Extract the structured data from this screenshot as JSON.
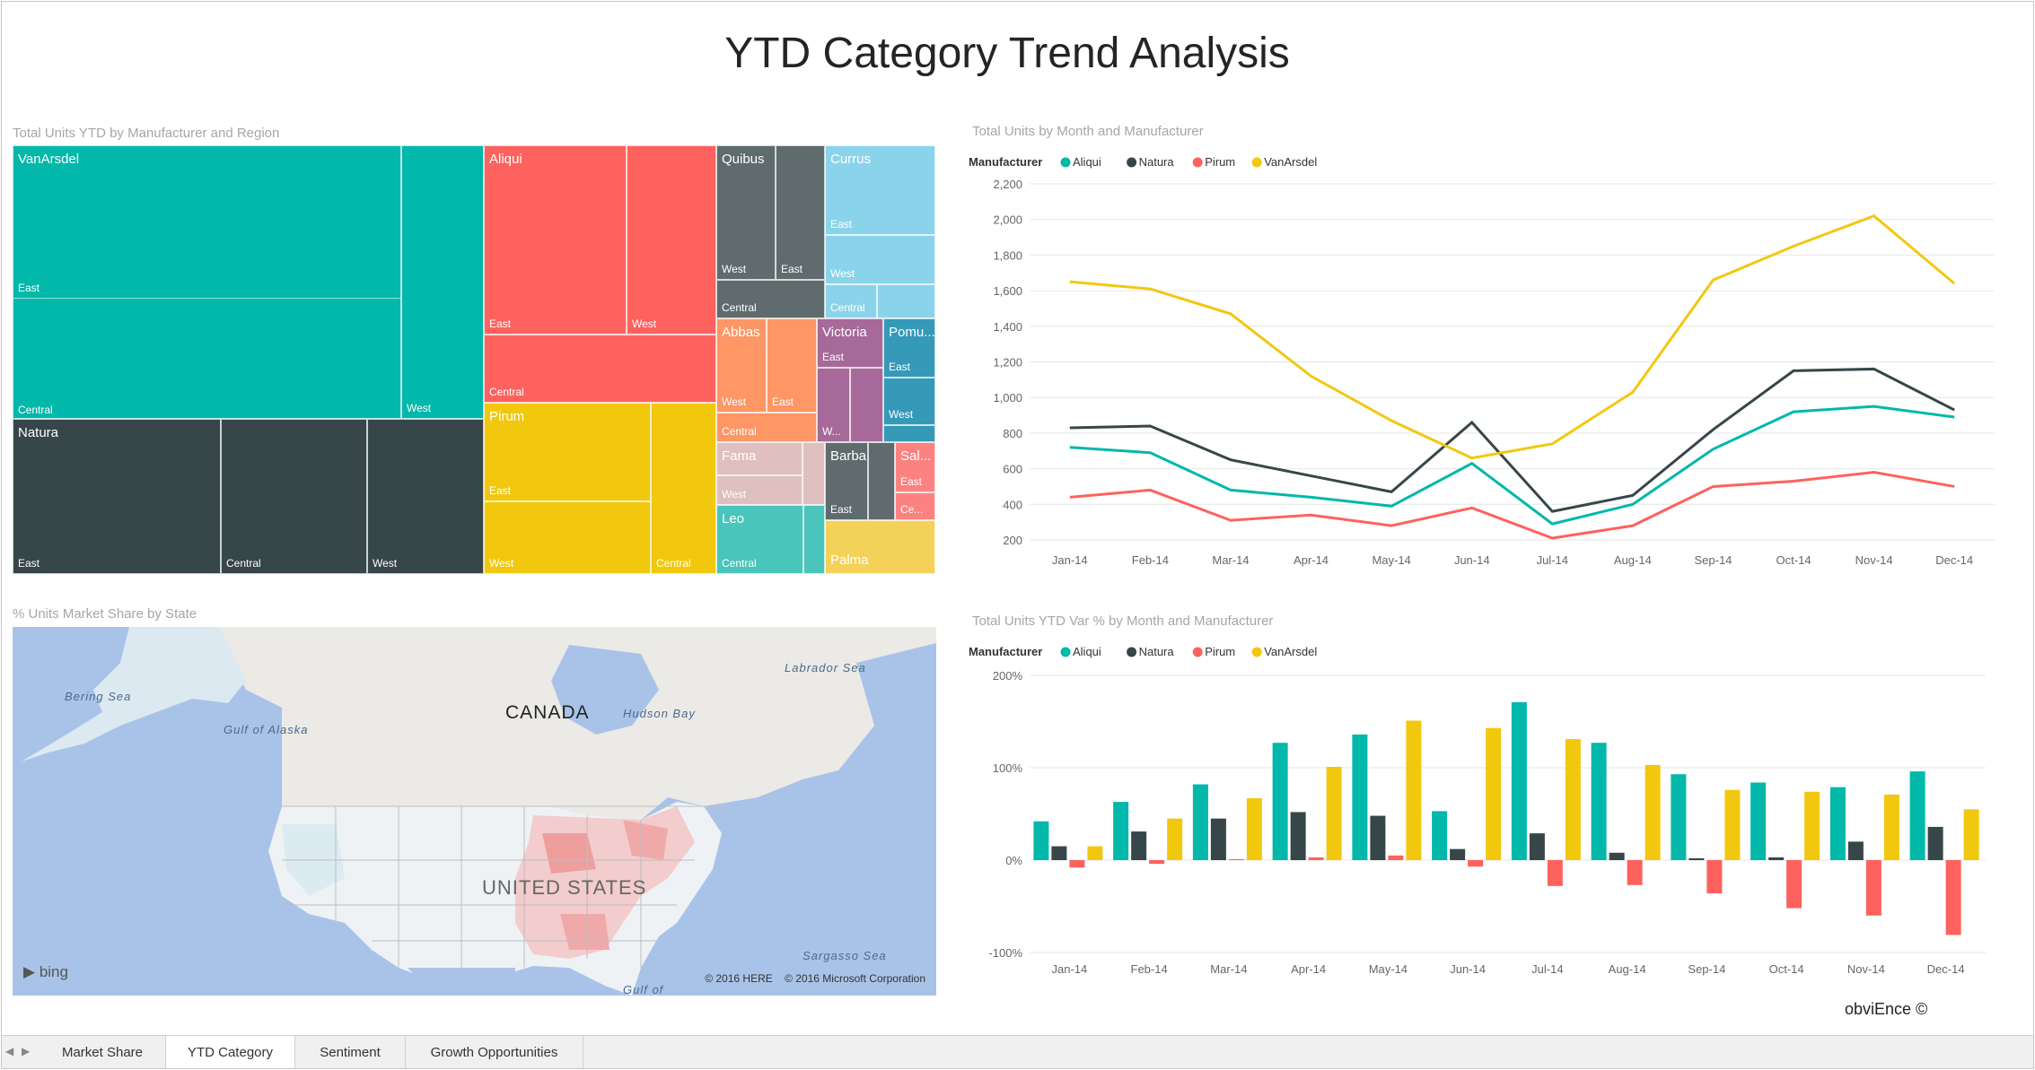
{
  "page": {
    "title": "YTD Category Trend Analysis",
    "watermark": "obviEnce ©"
  },
  "treemap": {
    "title": "Total Units YTD by Manufacturer and Region",
    "tiles": [
      {
        "name": "VanArsdel",
        "color": "#01B8AA",
        "regions": [
          "East",
          "Central",
          "West"
        ]
      },
      {
        "name": "Natura",
        "color": "#374649",
        "regions": [
          "East",
          "Central",
          "West"
        ]
      },
      {
        "name": "Aliqui",
        "color": "#FD625E",
        "regions": [
          "East",
          "West",
          "Central"
        ]
      },
      {
        "name": "Pirum",
        "color": "#F2C80F",
        "regions": [
          "East",
          "West",
          "Central"
        ]
      },
      {
        "name": "Quibus",
        "color": "#5F6B6D",
        "regions": [
          "West",
          "East",
          "Central"
        ]
      },
      {
        "name": "Currus",
        "color": "#8AD4EB",
        "regions": [
          "East",
          "West",
          "Central"
        ]
      },
      {
        "name": "Abbas",
        "color": "#FE9666",
        "regions": [
          "West",
          "East",
          "Central"
        ]
      },
      {
        "name": "Victoria",
        "color": "#A66999",
        "regions": [
          "East",
          "W..."
        ]
      },
      {
        "name": "Pomu...",
        "color": "#3599B8",
        "regions": [
          "East",
          "West"
        ]
      },
      {
        "name": "Fama",
        "color": "#DFBFBF",
        "regions": [
          "West"
        ]
      },
      {
        "name": "Barba",
        "color": "#4AC5BB",
        "regions": [
          "East"
        ]
      },
      {
        "name": "Sal...",
        "color": "#FB8281",
        "regions": [
          "East",
          "Ce..."
        ]
      },
      {
        "name": "Leo",
        "color": "#4AC5BB",
        "regions": [
          "Central"
        ]
      },
      {
        "name": "Palma",
        "color": "#F4D25A",
        "regions": []
      }
    ]
  },
  "map": {
    "title": "% Units Market Share by State",
    "labels": {
      "canada": "CANADA",
      "us": "UNITED STATES",
      "bering": "Bering Sea",
      "alaska": "Gulf of Alaska",
      "hudson": "Hudson Bay",
      "labrador": "Labrador Sea",
      "sargasso": "Sargasso Sea",
      "gulf": "Gulf of"
    },
    "attribution": "© 2016 HERE    © 2016 Microsoft Corporation",
    "logo": "bing"
  },
  "line_chart": {
    "title": "Total Units by Month and Manufacturer",
    "legend_label": "Manufacturer"
  },
  "bar_chart": {
    "title": "Total Units YTD Var % by Month and Manufacturer",
    "legend_label": "Manufacturer"
  },
  "chart_data": [
    {
      "type": "line",
      "title": "Total Units by Month and Manufacturer",
      "categories": [
        "Jan-14",
        "Feb-14",
        "Mar-14",
        "Apr-14",
        "May-14",
        "Jun-14",
        "Jul-14",
        "Aug-14",
        "Sep-14",
        "Oct-14",
        "Nov-14",
        "Dec-14"
      ],
      "ylim": [
        200,
        2200
      ],
      "yticks": [
        "200",
        "400",
        "600",
        "800",
        "1,000",
        "1,200",
        "1,400",
        "1,600",
        "1,800",
        "2,000",
        "2,200"
      ],
      "series": [
        {
          "name": "Aliqui",
          "color": "#01B8AA",
          "values": [
            720,
            690,
            480,
            440,
            390,
            630,
            290,
            400,
            710,
            920,
            950,
            890
          ]
        },
        {
          "name": "Natura",
          "color": "#374649",
          "values": [
            830,
            840,
            650,
            560,
            470,
            860,
            360,
            450,
            820,
            1150,
            1160,
            930
          ]
        },
        {
          "name": "Pirum",
          "color": "#FD625E",
          "values": [
            440,
            480,
            310,
            340,
            280,
            380,
            210,
            280,
            500,
            530,
            580,
            500
          ]
        },
        {
          "name": "VanArsdel",
          "color": "#F2C80F",
          "values": [
            1650,
            1610,
            1470,
            1120,
            870,
            660,
            740,
            1030,
            1660,
            1850,
            2020,
            1640
          ]
        }
      ]
    },
    {
      "type": "bar",
      "title": "Total Units YTD Var % by Month and Manufacturer",
      "categories": [
        "Jan-14",
        "Feb-14",
        "Mar-14",
        "Apr-14",
        "May-14",
        "Jun-14",
        "Jul-14",
        "Aug-14",
        "Sep-14",
        "Oct-14",
        "Nov-14",
        "Dec-14"
      ],
      "ylim": [
        -100,
        200
      ],
      "yticks": [
        "-100%",
        "0%",
        "100%",
        "200%"
      ],
      "series": [
        {
          "name": "Aliqui",
          "color": "#01B8AA",
          "values": [
            42,
            63,
            82,
            127,
            136,
            53,
            171,
            127,
            93,
            84,
            79,
            96
          ]
        },
        {
          "name": "Natura",
          "color": "#374649",
          "values": [
            15,
            31,
            45,
            52,
            48,
            12,
            29,
            8,
            2,
            3,
            20,
            36
          ]
        },
        {
          "name": "Pirum",
          "color": "#FD625E",
          "values": [
            -8,
            -4,
            1,
            3,
            5,
            -7,
            -28,
            -27,
            -36,
            -52,
            -60,
            -81
          ]
        },
        {
          "name": "VanArsdel",
          "color": "#F2C80F",
          "values": [
            15,
            45,
            67,
            101,
            151,
            143,
            131,
            103,
            76,
            74,
            71,
            55
          ]
        }
      ]
    }
  ],
  "tabs": [
    {
      "label": "Market Share",
      "active": false
    },
    {
      "label": "YTD Category",
      "active": true
    },
    {
      "label": "Sentiment",
      "active": false
    },
    {
      "label": "Growth Opportunities",
      "active": false
    }
  ]
}
